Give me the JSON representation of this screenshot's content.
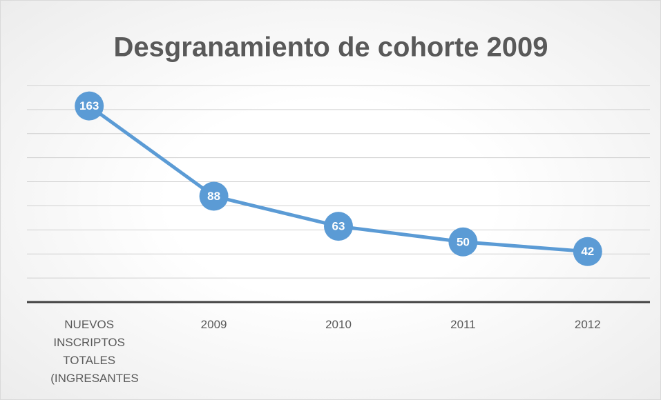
{
  "chart_data": {
    "type": "line",
    "title": "Desgranamiento de cohorte 2009",
    "categories": [
      "NUEVOS INSCRIPTOS TOTALES (INGRESANTES",
      "2009",
      "2010",
      "2011",
      "2012"
    ],
    "values": [
      163,
      88,
      63,
      50,
      42
    ],
    "color": "#5b9bd5",
    "ylim": [
      0,
      180
    ],
    "yticks": [
      0,
      20,
      40,
      60,
      80,
      100,
      120,
      140,
      160,
      180
    ],
    "grid": true
  }
}
